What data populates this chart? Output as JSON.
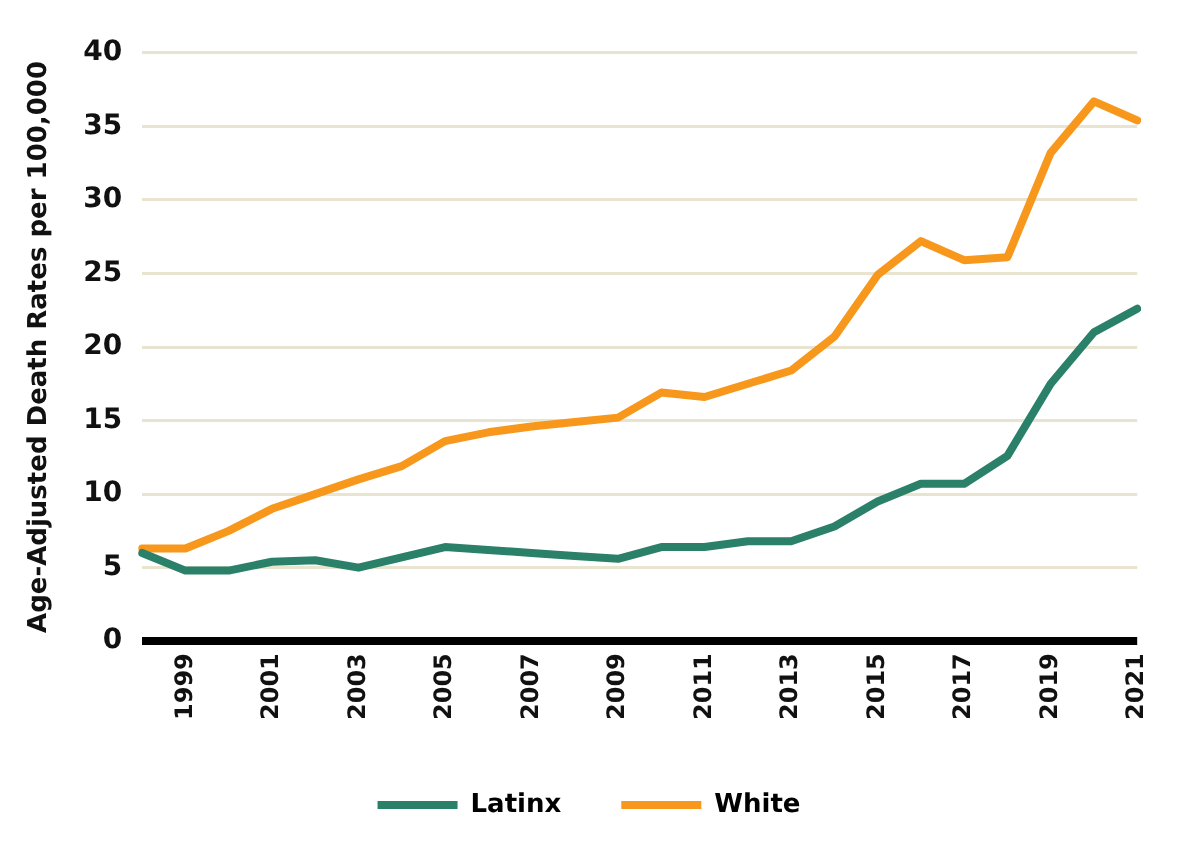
{
  "chart_data": {
    "type": "line",
    "ylabel": "Age-Adjusted Death Rates per 100,000",
    "categories": [
      null,
      "1999",
      null,
      "2001",
      null,
      "2003",
      null,
      "2005",
      null,
      "2007",
      null,
      "2009",
      null,
      "2011",
      null,
      "2013",
      null,
      "2015",
      null,
      "2017",
      null,
      "2019",
      null,
      "2021"
    ],
    "series": [
      {
        "name": "Latinx",
        "color": "#2a8068",
        "values": [
          6.0,
          4.8,
          4.8,
          5.4,
          5.5,
          5.0,
          5.7,
          6.4,
          6.2,
          6.0,
          5.8,
          5.6,
          6.4,
          6.4,
          6.8,
          6.8,
          7.8,
          9.5,
          10.7,
          10.7,
          12.6,
          17.5,
          21.0,
          22.6
        ]
      },
      {
        "name": "White",
        "color": "#f7981d",
        "values": [
          6.3,
          6.3,
          7.5,
          9.0,
          10.0,
          11.0,
          11.9,
          13.6,
          14.2,
          14.6,
          14.9,
          15.2,
          16.9,
          16.6,
          17.5,
          18.4,
          20.7,
          24.9,
          27.2,
          25.9,
          26.1,
          33.2,
          36.7,
          35.4
        ]
      }
    ],
    "ylim": [
      0,
      40
    ],
    "yticks": [
      0,
      5,
      10,
      15,
      20,
      25,
      30,
      35,
      40
    ],
    "grid": "y",
    "legend": "bottom",
    "marker": "none",
    "line_style": "solid"
  }
}
